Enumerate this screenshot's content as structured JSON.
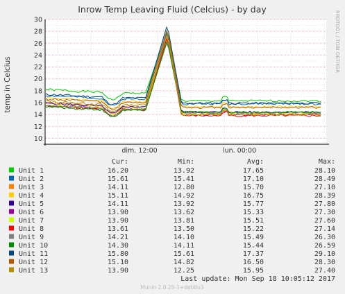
{
  "chart_data": {
    "type": "line",
    "title": "Inrow Temp Leaving Fluid (Celcius) - by day",
    "ylabel": "temp in Celcius",
    "side_label": "RRDTOOL / TOBI OETIKER",
    "ylim": [
      9,
      30
    ],
    "y_ticks": [
      10,
      12,
      14,
      16,
      18,
      20,
      22,
      24,
      26,
      28,
      30
    ],
    "x_ticks": [
      "dim. 12:00",
      "lun. 00:00"
    ],
    "grid": true,
    "legend_headers": [
      "Cur:",
      "Min:",
      "Avg:",
      "Max:"
    ],
    "series": [
      {
        "name": "Unit 1",
        "color": "#00cc00",
        "cur": "16.20",
        "min": "13.92",
        "avg": "17.65",
        "max": "28.10",
        "base_before": 18.2,
        "base_after": 16.3,
        "peak": 28.1
      },
      {
        "name": "Unit 2",
        "color": "#0066b3",
        "cur": "15.61",
        "min": "15.41",
        "avg": "17.10",
        "max": "28.49",
        "base_before": 17.2,
        "base_after": 15.8,
        "peak": 28.5
      },
      {
        "name": "Unit 3",
        "color": "#ff8000",
        "cur": "14.11",
        "min": "12.80",
        "avg": "15.70",
        "max": "27.10",
        "base_before": 15.9,
        "base_after": 14.3,
        "peak": 27.1
      },
      {
        "name": "Unit 4",
        "color": "#ffcc00",
        "cur": "15.11",
        "min": "14.92",
        "avg": "16.75",
        "max": "28.39",
        "base_before": 16.8,
        "base_after": 15.3,
        "peak": 28.4
      },
      {
        "name": "Unit 5",
        "color": "#330099",
        "cur": "14.11",
        "min": "13.92",
        "avg": "15.77",
        "max": "27.80",
        "base_before": 15.9,
        "base_after": 14.4,
        "peak": 27.8
      },
      {
        "name": "Unit 6",
        "color": "#990099",
        "cur": "13.90",
        "min": "13.62",
        "avg": "15.33",
        "max": "27.30",
        "base_before": 15.5,
        "base_after": 14.0,
        "peak": 27.3
      },
      {
        "name": "Unit 7",
        "color": "#ccff00",
        "cur": "13.90",
        "min": "13.81",
        "avg": "15.51",
        "max": "27.60",
        "base_before": 15.6,
        "base_after": 14.1,
        "peak": 27.6
      },
      {
        "name": "Unit 8",
        "color": "#ff0000",
        "cur": "13.61",
        "min": "13.50",
        "avg": "15.22",
        "max": "27.14",
        "base_before": 15.4,
        "base_after": 13.8,
        "peak": 27.1
      },
      {
        "name": "Unit 9",
        "color": "#808080",
        "cur": "14.21",
        "min": "14.10",
        "avg": "15.49",
        "max": "26.30",
        "base_before": 15.5,
        "base_after": 14.3,
        "peak": 26.3
      },
      {
        "name": "Unit 10",
        "color": "#008f00",
        "cur": "14.30",
        "min": "14.11",
        "avg": "15.44",
        "max": "26.59",
        "base_before": 15.3,
        "base_after": 14.4,
        "peak": 26.6
      },
      {
        "name": "Unit 11",
        "color": "#00487d",
        "cur": "15.80",
        "min": "15.61",
        "avg": "17.37",
        "max": "29.10",
        "base_before": 17.4,
        "base_after": 15.9,
        "peak": 29.1
      },
      {
        "name": "Unit 12",
        "color": "#b35a00",
        "cur": "15.10",
        "min": "14.82",
        "avg": "16.50",
        "max": "28.30",
        "base_before": 16.6,
        "base_after": 15.2,
        "peak": 28.3
      },
      {
        "name": "Unit 13",
        "color": "#b38f00",
        "cur": "13.90",
        "min": "12.25",
        "avg": "15.95",
        "max": "27.40",
        "base_before": 16.2,
        "base_after": 14.0,
        "peak": 27.4
      }
    ],
    "last_update": "Last update:  Mon Sep 18 10:05:12 2017",
    "footer": "Munin 2.0.25-1+deb8u3"
  }
}
